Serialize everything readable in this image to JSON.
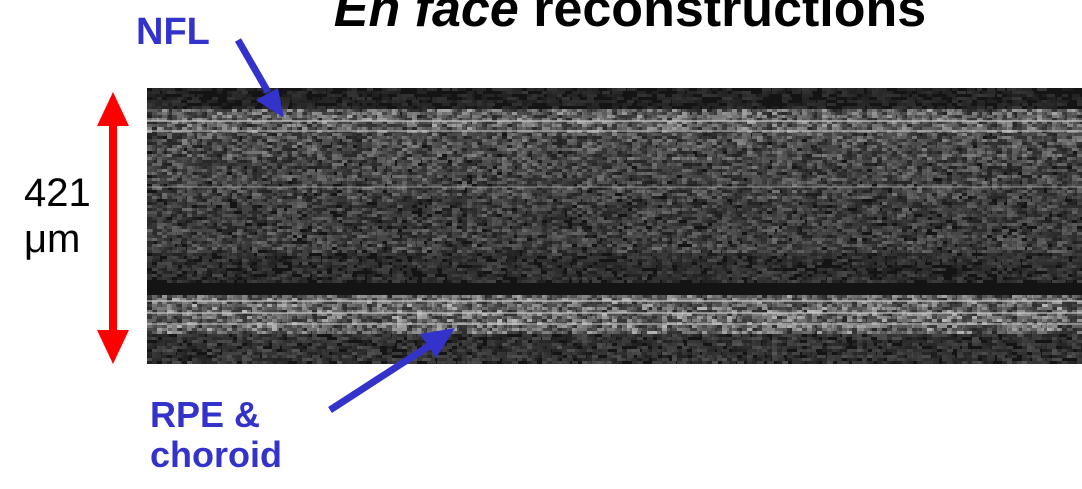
{
  "title": {
    "italic_part": "En face",
    "rest": " reconstructions"
  },
  "labels": {
    "top_layer": "NFL",
    "bottom_layer_line1": "RPE &",
    "bottom_layer_line2": "choroid"
  },
  "scale": {
    "value": "421",
    "unit": "μm"
  },
  "colors": {
    "label_text": "#3333cc",
    "pointer_arrow": "#3333cc",
    "scale_arrow": "#ff0000",
    "image_background": "#141414"
  }
}
